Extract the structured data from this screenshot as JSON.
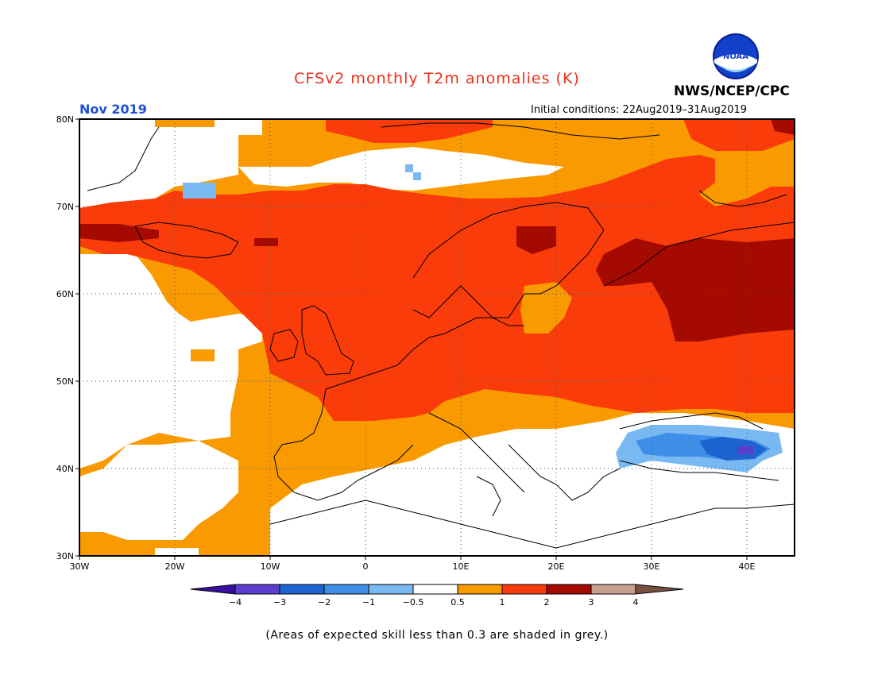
{
  "title": "CFSv2 monthly T2m anomalies (K)",
  "month": "Nov 2019",
  "initial_conditions": "Initial conditions: 22Aug2019–31Aug2019",
  "org": "NWS/NCEP/CPC",
  "logo_text": "NOAA",
  "note": "(Areas of expected skill less than 0.3 are shaded in grey.)",
  "map": {
    "lon_range": [
      -30,
      45
    ],
    "lat_range": [
      30,
      80
    ],
    "lat_ticks": [
      "80N",
      "70N",
      "60N",
      "50N",
      "40N",
      "30N"
    ],
    "lon_ticks": [
      "30W",
      "20W",
      "10W",
      "0",
      "10E",
      "20E",
      "30E",
      "40E"
    ]
  },
  "colorbar": {
    "labels": [
      "−4",
      "−3",
      "−2",
      "−1",
      "−0.5",
      "0.5",
      "1",
      "2",
      "3",
      "4"
    ],
    "colors": {
      "below_m4": "#3a0fa0",
      "m4_m3": "#5a3ed0",
      "m3_m2": "#1e64d0",
      "m2_m1": "#3f8fe8",
      "m1_m05": "#7ab8f2",
      "m05_05": "#ffffff",
      "p05_1": "#f99b00",
      "p1_2": "#fa3b0a",
      "p2_3": "#a40a00",
      "p3_4": "#c9a08e",
      "above_4": "#7a5040"
    }
  }
}
